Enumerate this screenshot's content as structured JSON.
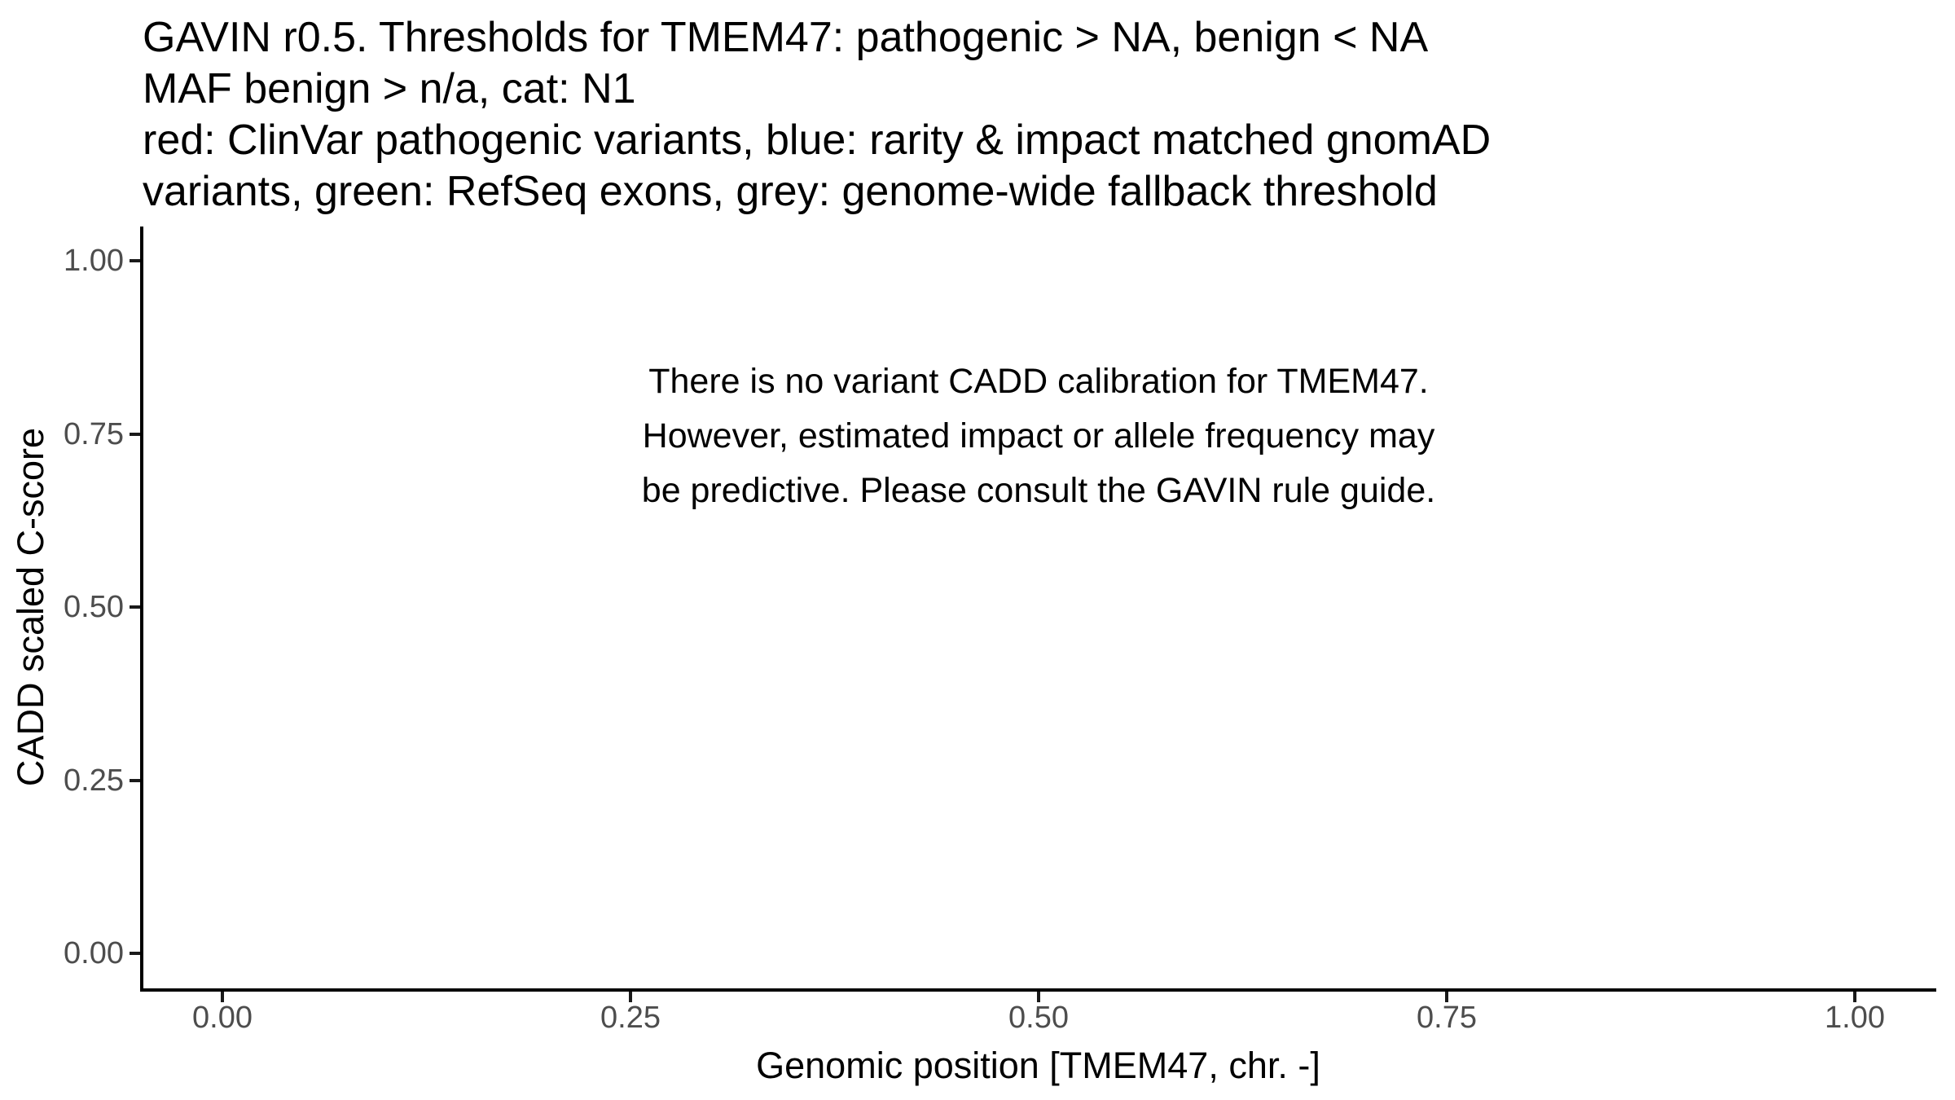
{
  "title": {
    "lines": [
      "GAVIN r0.5. Thresholds for TMEM47: pathogenic > NA, benign < NA",
      "MAF benign > n/a, cat: N1",
      "red: ClinVar pathogenic variants, blue: rarity & impact matched gnomAD",
      "variants, green: RefSeq exons, grey: genome-wide fallback threshold"
    ]
  },
  "annotation": {
    "lines": [
      "There is no variant CADD calibration for TMEM47.",
      "However, estimated impact or allele frequency may",
      "be predictive. Please consult the GAVIN rule guide."
    ]
  },
  "axes": {
    "x": {
      "label": "Genomic position [TMEM47, chr. -]",
      "tick_labels": [
        "0.00",
        "0.25",
        "0.50",
        "0.75",
        "1.00"
      ]
    },
    "y": {
      "label": "CADD scaled C-score",
      "tick_labels": [
        "0.00",
        "0.25",
        "0.50",
        "0.75",
        "1.00"
      ]
    }
  },
  "colors": {
    "background": "#ffffff",
    "axis_line": "#000000",
    "tick_mark": "#1a1a1a",
    "tick_label": "#4d4d4d",
    "text": "#000000"
  },
  "chart_data": {
    "type": "scatter",
    "title": "GAVIN r0.5. Thresholds for TMEM47: pathogenic > NA, benign < NA\nMAF benign > n/a, cat: N1\nred: ClinVar pathogenic variants, blue: rarity & impact matched gnomAD\nvariants, green: RefSeq exons, grey: genome-wide fallback threshold",
    "xlabel": "Genomic position [TMEM47, chr. -]",
    "ylabel": "CADD scaled C-score",
    "xlim": [
      0,
      1
    ],
    "ylim": [
      0,
      1
    ],
    "x_ticks": [
      0.0,
      0.25,
      0.5,
      0.75,
      1.0
    ],
    "y_ticks": [
      0.0,
      0.25,
      0.5,
      0.75,
      1.0
    ],
    "grid": false,
    "legend": "none",
    "series": [],
    "annotations": [
      {
        "text": "There is no variant CADD calibration for TMEM47.\nHowever, estimated impact or allele frequency may\nbe predictive. Please consult the GAVIN rule guide.",
        "x": 0.5,
        "y": 0.8,
        "align": "center"
      }
    ]
  }
}
